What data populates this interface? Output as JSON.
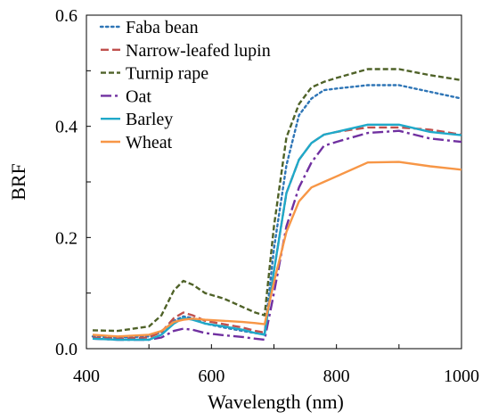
{
  "chart_data": {
    "type": "line",
    "xlabel": "Wavelength (nm)",
    "ylabel": "BRF",
    "xlim": [
      400,
      1000
    ],
    "ylim": [
      0.0,
      0.6
    ],
    "xticks": [
      400,
      600,
      800,
      1000
    ],
    "xtick_labels": [
      "400",
      "600",
      "800",
      "1000"
    ],
    "yticks": [
      0.0,
      0.2,
      0.4,
      0.6
    ],
    "ytick_labels": [
      "0.0",
      "0.2",
      "0.4",
      "0.6"
    ],
    "grid": false,
    "legend_position": "top-left",
    "x": [
      410,
      450,
      500,
      520,
      540,
      555,
      570,
      590,
      620,
      650,
      670,
      685,
      700,
      720,
      740,
      760,
      780,
      800,
      850,
      900,
      950,
      1000
    ],
    "series": [
      {
        "name": "Faba bean",
        "color": "#2e75b6",
        "dash": "dot",
        "values": [
          0.022,
          0.02,
          0.022,
          0.03,
          0.05,
          0.058,
          0.055,
          0.045,
          0.038,
          0.032,
          0.028,
          0.026,
          0.18,
          0.33,
          0.42,
          0.45,
          0.465,
          0.468,
          0.474,
          0.474,
          0.462,
          0.45
        ]
      },
      {
        "name": "Narrow-leafed lupin",
        "color": "#c0504d",
        "dash": "dashlong",
        "values": [
          0.02,
          0.018,
          0.02,
          0.03,
          0.055,
          0.065,
          0.06,
          0.05,
          0.044,
          0.038,
          0.032,
          0.029,
          0.14,
          0.28,
          0.34,
          0.37,
          0.385,
          0.39,
          0.398,
          0.398,
          0.394,
          0.385
        ]
      },
      {
        "name": "Turnip rape",
        "color": "#4f6228",
        "dash": "dash",
        "values": [
          0.033,
          0.032,
          0.04,
          0.06,
          0.105,
          0.122,
          0.115,
          0.1,
          0.09,
          0.075,
          0.065,
          0.06,
          0.22,
          0.38,
          0.44,
          0.47,
          0.48,
          0.487,
          0.503,
          0.503,
          0.492,
          0.483
        ]
      },
      {
        "name": "Oat",
        "color": "#7030a0",
        "dash": "dashdot",
        "values": [
          0.018,
          0.016,
          0.016,
          0.02,
          0.032,
          0.036,
          0.034,
          0.028,
          0.024,
          0.021,
          0.018,
          0.016,
          0.1,
          0.22,
          0.29,
          0.335,
          0.365,
          0.372,
          0.388,
          0.392,
          0.378,
          0.372
        ]
      },
      {
        "name": "Barley",
        "color": "#1fa9c9",
        "dash": "solid",
        "values": [
          0.018,
          0.016,
          0.016,
          0.025,
          0.045,
          0.055,
          0.052,
          0.045,
          0.04,
          0.034,
          0.028,
          0.025,
          0.14,
          0.28,
          0.34,
          0.37,
          0.385,
          0.39,
          0.403,
          0.403,
          0.39,
          0.384
        ]
      },
      {
        "name": "Wheat",
        "color": "#f79646",
        "dash": "solid",
        "values": [
          0.025,
          0.022,
          0.025,
          0.032,
          0.048,
          0.052,
          0.054,
          0.052,
          0.05,
          0.048,
          0.046,
          0.044,
          0.12,
          0.21,
          0.265,
          0.29,
          0.3,
          0.31,
          0.335,
          0.336,
          0.328,
          0.322
        ]
      }
    ]
  }
}
